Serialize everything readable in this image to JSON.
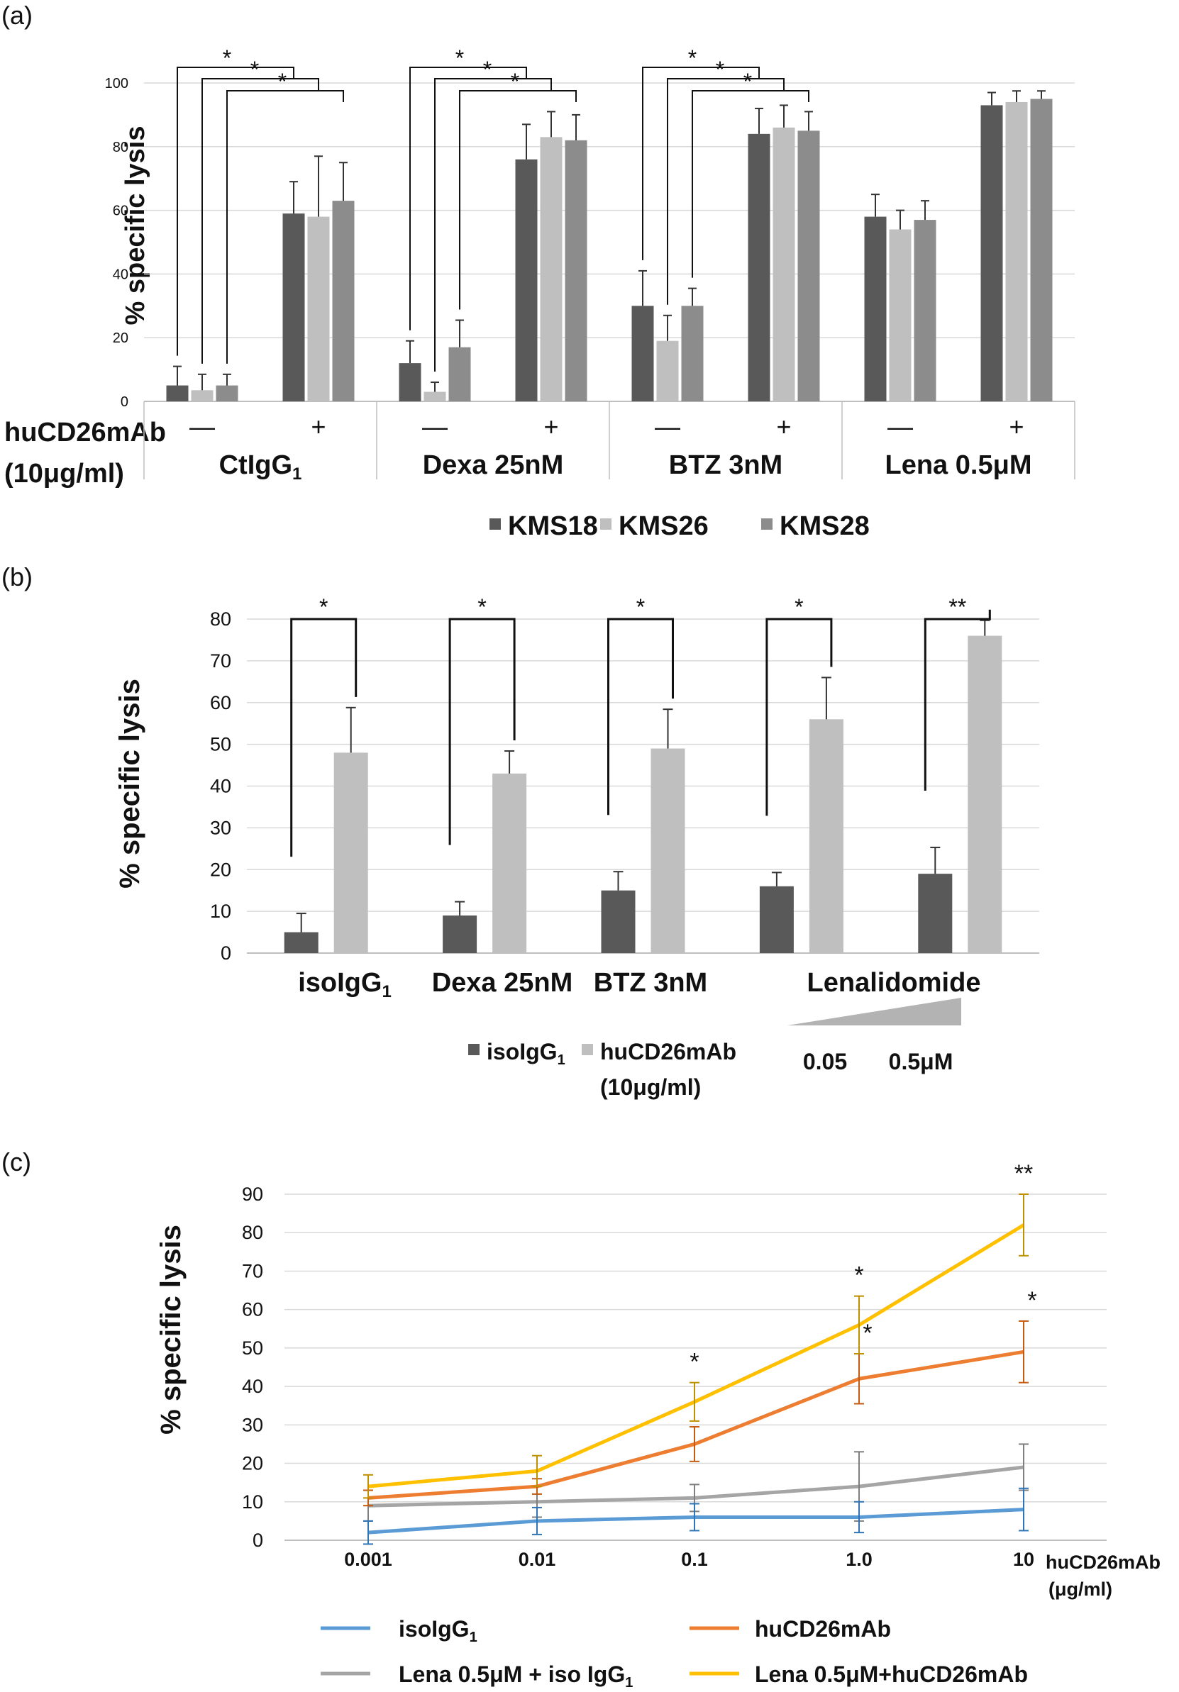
{
  "colors": {
    "kms18": "#595959",
    "kms26": "#bfbfbf",
    "kms28": "#8c8c8c",
    "iso_bar": "#595959",
    "hu_bar": "#bfbfbf",
    "grid": "#d9d9d9",
    "axis": "#bfbfbf",
    "line_iso": "#5b9bd5",
    "line_hu": "#ed7d31",
    "line_lena_iso": "#a5a5a5",
    "line_lena_hu": "#ffc000",
    "err_iso": "#2e75b6",
    "err_hu": "#c55a11",
    "err_lena_iso": "#7f7f7f",
    "err_lena_hu": "#bf9000"
  },
  "panels": {
    "a": {
      "label": "(a)",
      "treatment_label_1": "huCD26mAb",
      "treatment_label_2": "(10μg/ml)",
      "minus": "—",
      "plus": "+"
    },
    "b": {
      "label": "(b)",
      "lena_doses": [
        "0.05",
        "0.5μM"
      ]
    },
    "c": {
      "label": "(c)",
      "unit_label_1": "huCD26mAb",
      "unit_label_2": "(μg/ml)"
    }
  },
  "chart_data": [
    {
      "id": "a",
      "type": "bar",
      "ylabel": "% specific lysis",
      "ylim": [
        0,
        100
      ],
      "yticks": [
        0,
        20,
        40,
        60,
        80,
        100
      ],
      "grid": true,
      "groups": [
        "CtIgG1",
        "Dexa 25nM",
        "BTZ 3nM",
        "Lena 0.5μM"
      ],
      "group_labels": [
        {
          "main": "CtIgG",
          "sub": "1"
        },
        {
          "main": "Dexa 25nM",
          "sub": ""
        },
        {
          "main": "BTZ 3nM",
          "sub": ""
        },
        {
          "main": "Lena 0.5μM",
          "sub": ""
        }
      ],
      "categories": [
        "CtIgG1 −",
        "CtIgG1 +",
        "Dexa −",
        "Dexa +",
        "BTZ −",
        "BTZ +",
        "Lena −",
        "Lena +"
      ],
      "series": [
        {
          "name": "KMS18",
          "values": [
            5,
            59,
            12,
            76,
            30,
            84,
            58,
            93
          ],
          "errors": [
            6,
            10,
            7,
            11,
            11,
            8,
            7,
            4
          ]
        },
        {
          "name": "KMS26",
          "values": [
            3.5,
            58,
            3,
            83,
            19,
            86,
            54,
            94
          ],
          "errors": [
            5,
            19,
            3,
            8,
            8,
            7,
            6,
            3.5
          ]
        },
        {
          "name": "KMS28",
          "values": [
            5,
            63,
            17,
            82,
            30,
            85,
            57,
            95
          ],
          "errors": [
            3.5,
            12,
            8.5,
            8,
            5.5,
            6,
            6,
            2.5
          ]
        }
      ],
      "significance": [
        {
          "group": 0,
          "from": 0,
          "to": 1,
          "label": "*"
        },
        {
          "group": 0,
          "from": 1,
          "to": 2,
          "label": "*"
        },
        {
          "group": 0,
          "from": 2,
          "to": 3,
          "label": "*"
        },
        {
          "group": 1,
          "from": 0,
          "to": 1,
          "label": "*"
        },
        {
          "group": 1,
          "from": 1,
          "to": 2,
          "label": "*"
        },
        {
          "group": 1,
          "from": 2,
          "to": 3,
          "label": "*"
        },
        {
          "group": 2,
          "from": 0,
          "to": 1,
          "label": "*"
        },
        {
          "group": 2,
          "from": 1,
          "to": 2,
          "label": "*"
        },
        {
          "group": 2,
          "from": 2,
          "to": 3,
          "label": "*"
        }
      ],
      "legend": [
        "KMS18",
        "KMS26",
        "KMS28"
      ],
      "legend_position": "bottom"
    },
    {
      "id": "b",
      "type": "bar",
      "ylabel": "% specific lysis",
      "ylim": [
        0,
        80
      ],
      "yticks": [
        0,
        10,
        20,
        30,
        40,
        50,
        60,
        70,
        80
      ],
      "grid": true,
      "categories": [
        "isoIgG1",
        "Dexa 25nM",
        "BTZ 3nM",
        "Lenalidomide 0.05",
        "Lenalidomide 0.5μM"
      ],
      "category_labels": [
        {
          "main": "isoIgG",
          "sub": "1"
        },
        {
          "main": "Dexa 25nM",
          "sub": ""
        },
        {
          "main": "BTZ 3nM",
          "sub": ""
        },
        {
          "main": "Lenalidomide",
          "sub": ""
        }
      ],
      "series": [
        {
          "name": "isoIgG1",
          "values": [
            5,
            9,
            15,
            16,
            19
          ],
          "errors": [
            4.5,
            3.3,
            4.5,
            3.3,
            6.3
          ]
        },
        {
          "name": "huCD26mAb (10μg/ml)",
          "values": [
            48,
            43,
            49,
            56,
            76
          ],
          "errors": [
            10.8,
            5.4,
            9.4,
            10,
            3.7
          ]
        }
      ],
      "significance": [
        "*",
        "*",
        "*",
        "*",
        "**"
      ],
      "legend": [
        {
          "main": "isoIgG",
          "sub": "1"
        },
        {
          "main": "huCD26mAb",
          "sub": ""
        }
      ],
      "legend_line2": "(10μg/ml)",
      "legend_position": "bottom"
    },
    {
      "id": "c",
      "type": "line",
      "ylabel": "% specific lysis",
      "ylim": [
        0,
        90
      ],
      "yticks": [
        0,
        10,
        20,
        30,
        40,
        50,
        60,
        70,
        80,
        90
      ],
      "grid": true,
      "x": [
        "0.001",
        "0.01",
        "0.1",
        "1.0",
        "10"
      ],
      "series": [
        {
          "name": "isoIgG1",
          "values": [
            2,
            5,
            6,
            6,
            8
          ],
          "errors": [
            3,
            3.5,
            3.5,
            4,
            5.5
          ]
        },
        {
          "name": "huCD26mAb",
          "values": [
            11,
            14,
            25,
            42,
            49
          ],
          "errors": [
            2,
            2,
            4.5,
            6.5,
            8
          ]
        },
        {
          "name": "Lena 0.5μM + iso IgG1",
          "values": [
            9,
            10,
            11,
            14,
            19
          ],
          "errors": [
            4,
            4,
            3.5,
            9,
            6
          ]
        },
        {
          "name": "Lena 0.5μM+huCD26mAb",
          "values": [
            14,
            18,
            36,
            56,
            82
          ],
          "errors": [
            3,
            4,
            5,
            7.5,
            8
          ]
        }
      ],
      "significance": [
        {
          "series": 3,
          "index": 2,
          "label": "*"
        },
        {
          "series": 3,
          "index": 3,
          "label": "*"
        },
        {
          "series": 3,
          "index": 4,
          "label": "**"
        },
        {
          "series": 1,
          "index": 3,
          "label": "*"
        },
        {
          "series": 1,
          "index": 4,
          "label": "*"
        }
      ],
      "legend": [
        {
          "main": "isoIgG",
          "sub": "1"
        },
        {
          "main": "huCD26mAb",
          "sub": ""
        },
        {
          "main": "Lena 0.5μM + iso IgG",
          "sub": "1"
        },
        {
          "main": "Lena 0.5μM+huCD26mAb",
          "sub": ""
        }
      ],
      "legend_position": "bottom"
    }
  ]
}
